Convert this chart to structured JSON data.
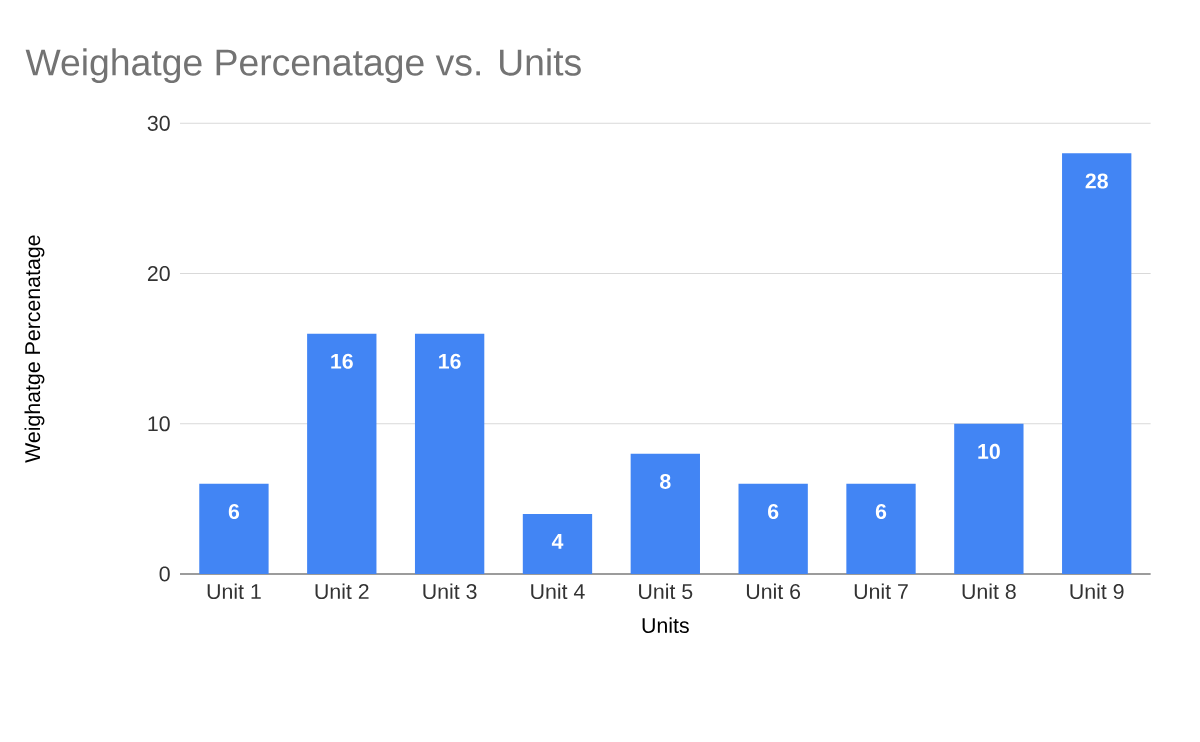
{
  "chart_data": {
    "type": "bar",
    "title": "Weighatge Percenatage vs. Units",
    "xlabel": "Units",
    "ylabel": "Weighatge Percenatage",
    "categories": [
      "Unit 1",
      "Unit 2",
      "Unit 3",
      "Unit 4",
      "Unit 5",
      "Unit 6",
      "Unit 7",
      "Unit 8",
      "Unit 9"
    ],
    "values": [
      6,
      16,
      16,
      4,
      8,
      6,
      6,
      10,
      28
    ],
    "color": "#4285f4",
    "ylim": [
      0,
      30
    ],
    "yticks": [
      0,
      10,
      20,
      30
    ],
    "grid": "y",
    "data_labels": true
  }
}
